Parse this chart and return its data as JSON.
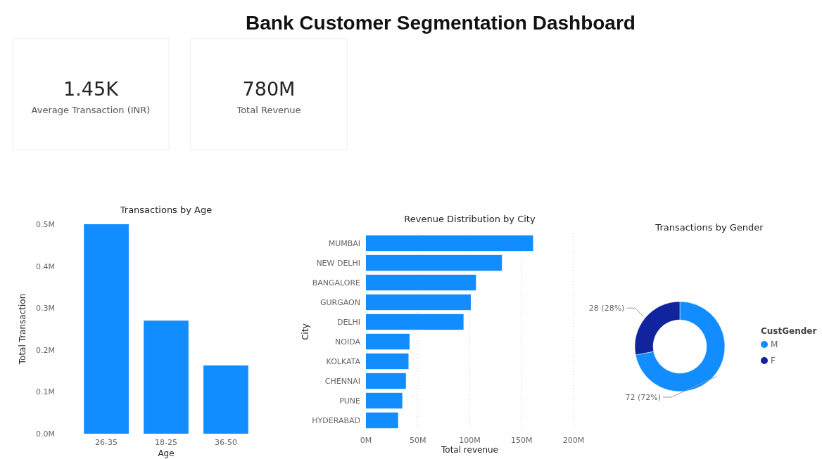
{
  "chart_data": [
    {
      "type": "other",
      "title": "Bank Customer Segmentation Dashboard",
      "annotations": [
        "1.45K",
        "Average Transaction (INR)",
        "780M",
        "Total Revenue"
      ]
    },
    {
      "type": "bar",
      "title": "Transactions by Age",
      "xlabel": "Age",
      "ylabel": "Total Transaction",
      "categories": [
        "26-35",
        "18-25",
        "36-50"
      ],
      "values": [
        0.5,
        0.27,
        0.163
      ],
      "color": "#118dff",
      "ylim": [
        0,
        0.5
      ],
      "yticks": [
        {
          "value": 0,
          "label": "0.0M"
        },
        {
          "value": 0.1,
          "label": "0.1M"
        },
        {
          "value": 0.2,
          "label": "0.2M"
        },
        {
          "value": 0.3,
          "label": "0.3M"
        },
        {
          "value": 0.4,
          "label": "0.4M"
        },
        {
          "value": 0.5,
          "label": "0.5M"
        }
      ],
      "grid": false
    },
    {
      "type": "bar",
      "orientation": "horizontal",
      "title": "Revenue Distribution by City",
      "xlabel": "Total revenue",
      "ylabel": "City",
      "categories": [
        "MUMBAI",
        "NEW DELHI",
        "BANGALORE",
        "GURGAON",
        "DELHI",
        "NOIDA",
        "KOLKATA",
        "CHENNAI",
        "PUNE",
        "HYDERABAD"
      ],
      "values": [
        161,
        131,
        106,
        101,
        94,
        42,
        41,
        38.5,
        35,
        31
      ],
      "color": "#118dff",
      "xlim": [
        0,
        200
      ],
      "xticks": [
        {
          "value": 0,
          "label": "0M"
        },
        {
          "value": 50,
          "label": "50M"
        },
        {
          "value": 100,
          "label": "100M"
        },
        {
          "value": 150,
          "label": "150M"
        },
        {
          "value": 200,
          "label": "200M"
        }
      ],
      "grid": "x"
    },
    {
      "type": "donut",
      "title": "Transactions by Gender",
      "legend_title": "CustGender",
      "categories": [
        "M",
        "F"
      ],
      "values": [
        72,
        28
      ],
      "colors": [
        "#118dff",
        "#12239e"
      ],
      "value_labels": [
        "72 (72%)",
        "28 (28%)"
      ],
      "legend": "right"
    }
  ]
}
